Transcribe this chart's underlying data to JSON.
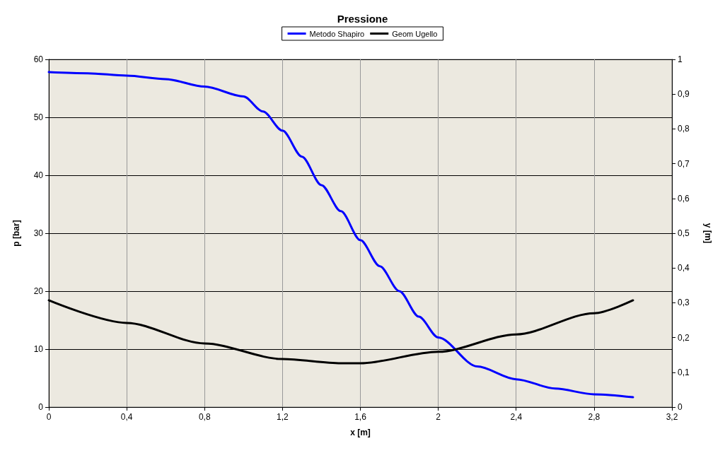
{
  "chart_data": {
    "type": "line",
    "title": "Pressione",
    "xlabel": "x [m]",
    "ylabel": "p [bar]",
    "y2label": "y [m]",
    "series": [
      {
        "name": "Metodo Shapiro",
        "color": "#0000ff",
        "x": [
          0,
          0.2,
          0.4,
          0.6,
          0.8,
          1.0,
          1.1,
          1.2,
          1.3,
          1.4,
          1.5,
          1.6,
          1.7,
          1.8,
          1.9,
          2.0,
          2.2,
          2.4,
          2.6,
          2.8,
          3.0
        ],
        "values": [
          57.8,
          57.6,
          57.2,
          56.6,
          55.3,
          53.6,
          51,
          47.7,
          43.2,
          38.3,
          33.8,
          28.8,
          24.3,
          20,
          15.6,
          12,
          7,
          4.8,
          3.2,
          2.2,
          1.7
        ]
      },
      {
        "name": "Geom Ugello",
        "color": "#000000",
        "axis": "y2",
        "x": [
          0,
          0.4,
          0.8,
          1.2,
          1.5,
          1.6,
          2.0,
          2.4,
          2.8,
          3.0
        ],
        "values": [
          0.307,
          0.242,
          0.183,
          0.138,
          0.126,
          0.126,
          0.159,
          0.209,
          0.27,
          0.307
        ]
      }
    ],
    "xlim": [
      0,
      3.2
    ],
    "xticks": [
      0,
      {
        "value": 0.4,
        "label": "0,4"
      },
      {
        "value": 0.8,
        "label": "0,8"
      },
      {
        "value": 1.2,
        "label": "1,2"
      },
      {
        "value": 1.6,
        "label": "1,6"
      },
      2,
      {
        "value": 2.4,
        "label": "2,4"
      },
      {
        "value": 2.8,
        "label": "2,8"
      },
      {
        "value": 3.2,
        "label": "3,2"
      }
    ],
    "ylim": [
      0,
      60
    ],
    "yticks": [
      0,
      10,
      20,
      30,
      40,
      50,
      60
    ],
    "y2lim": [
      0,
      1
    ],
    "y2ticks": [
      0,
      {
        "value": 0.1,
        "label": "0,1"
      },
      {
        "value": 0.2,
        "label": "0,2"
      },
      {
        "value": 0.3,
        "label": "0,3"
      },
      {
        "value": 0.4,
        "label": "0,4"
      },
      {
        "value": 0.5,
        "label": "0,5"
      },
      {
        "value": 0.6,
        "label": "0,6"
      },
      {
        "value": 0.7,
        "label": "0,7"
      },
      {
        "value": 0.8,
        "label": "0,8"
      },
      {
        "value": 0.9,
        "label": "0,9"
      },
      1
    ],
    "grid": true,
    "legend": "top",
    "marker": "none",
    "line_style": "solid"
  }
}
